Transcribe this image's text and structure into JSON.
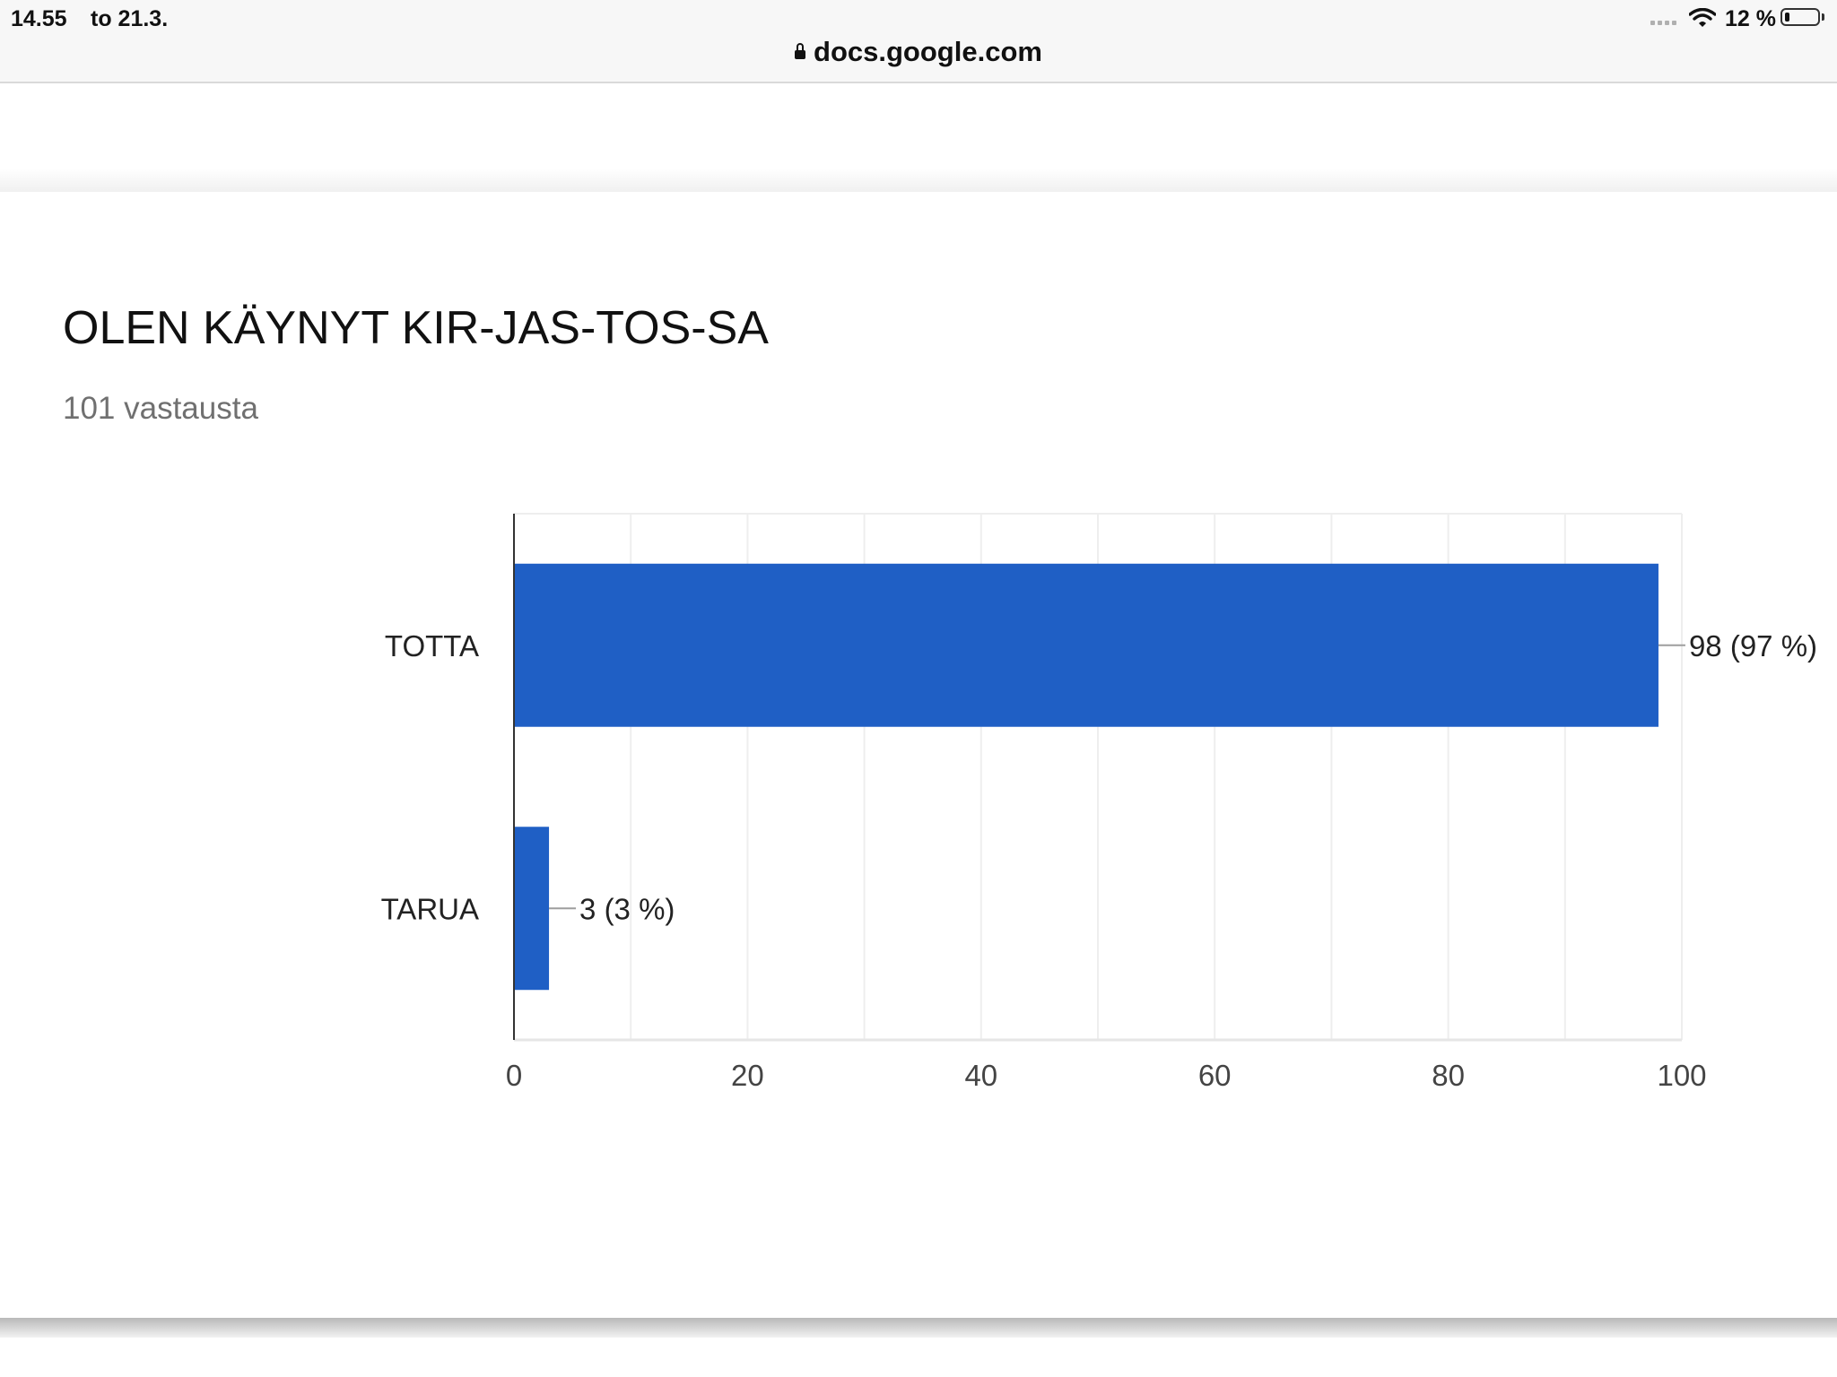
{
  "status_bar": {
    "time": "14.55",
    "date": "to 21.3.",
    "battery": "12 %",
    "icons": [
      "signal-icon",
      "wifi-icon",
      "battery-icon"
    ]
  },
  "browser": {
    "url": "docs.google.com",
    "icons": [
      "lock-icon"
    ]
  },
  "form_card": {
    "question": "OLEN KÄYNYT KIR-JAS-TOS-SA",
    "responses": "101 vastausta"
  },
  "colors": {
    "bar": "#1f5fc5",
    "axis": "#333333",
    "gridline": "#eeeeee",
    "leader_line": "#9e9e9e",
    "text": "#202124",
    "muted": "#707070"
  },
  "chart_data": {
    "type": "bar",
    "orientation": "horizontal",
    "categories": [
      "TOTTA",
      "TARUA"
    ],
    "values": [
      98,
      3
    ],
    "data_labels": [
      "98 (97 %)",
      "3 (3 %)"
    ],
    "xlim": [
      0,
      100
    ],
    "x_ticks": [
      0,
      20,
      40,
      60,
      80,
      100
    ],
    "x_tick_labels": [
      "0",
      "20",
      "40",
      "60",
      "80",
      "100"
    ],
    "x_minor_step": 10,
    "grid": true,
    "legend": "none"
  }
}
